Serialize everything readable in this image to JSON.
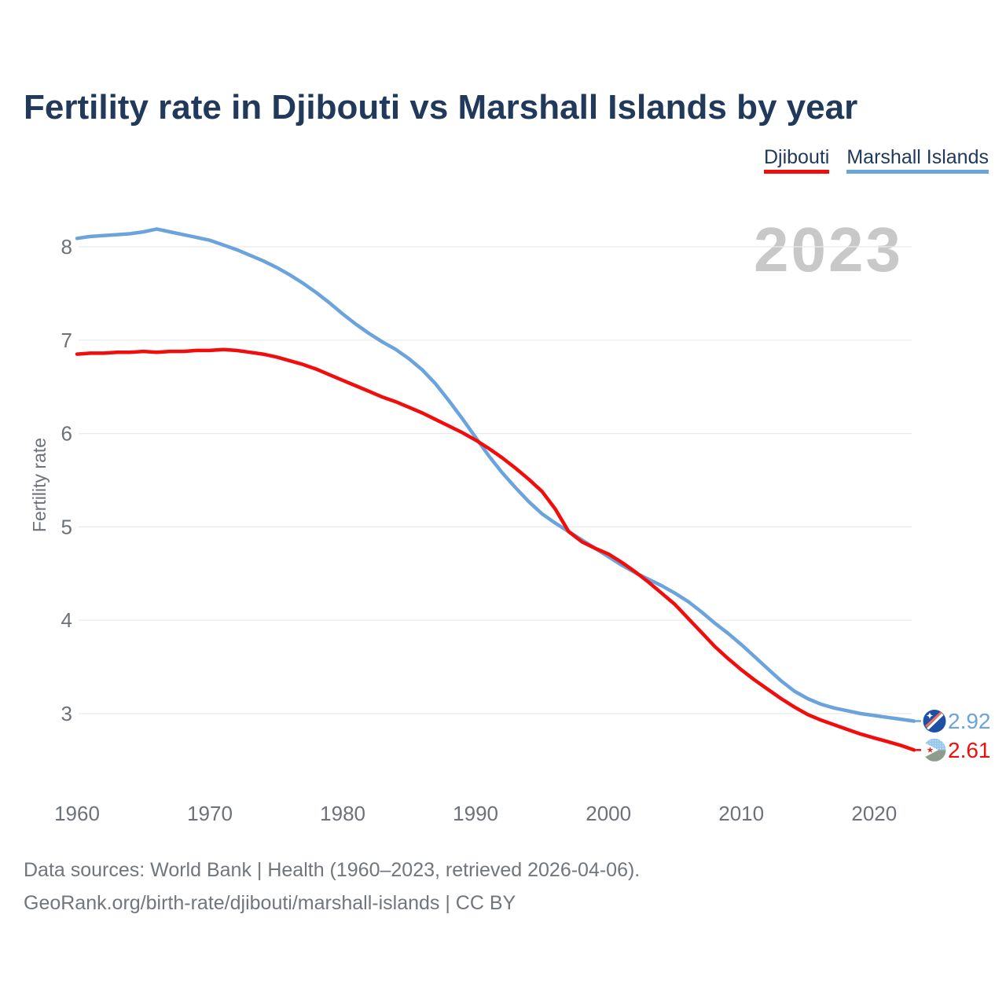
{
  "header": {
    "title": "Fertility rate in Djibouti vs Marshall Islands by year"
  },
  "legend": {
    "items": [
      {
        "label": "Djibouti",
        "color": "#f20d0d"
      },
      {
        "label": "Marshall Islands",
        "color": "#6ba3dd"
      }
    ]
  },
  "watermark": "2023",
  "chart_data": {
    "type": "line",
    "title": "Fertility rate in Djibouti vs Marshall Islands by year",
    "xlabel": "",
    "ylabel": "Fertility rate",
    "ylim": [
      2.4,
      8.45
    ],
    "yticks": [
      3,
      4,
      5,
      6,
      7,
      8
    ],
    "xticks": [
      1960,
      1970,
      1980,
      1990,
      2000,
      2010,
      2020
    ],
    "grid": "horizontal",
    "legend_position": "top-right",
    "years": [
      1960,
      1961,
      1962,
      1963,
      1964,
      1965,
      1966,
      1967,
      1968,
      1969,
      1970,
      1971,
      1972,
      1973,
      1974,
      1975,
      1976,
      1977,
      1978,
      1979,
      1980,
      1981,
      1982,
      1983,
      1984,
      1985,
      1986,
      1987,
      1988,
      1989,
      1990,
      1991,
      1992,
      1993,
      1994,
      1995,
      1996,
      1997,
      1998,
      1999,
      2000,
      2001,
      2002,
      2003,
      2004,
      2005,
      2006,
      2007,
      2008,
      2009,
      2010,
      2011,
      2012,
      2013,
      2014,
      2015,
      2016,
      2017,
      2018,
      2019,
      2020,
      2021,
      2022,
      2023
    ],
    "series": [
      {
        "name": "Marshall Islands",
        "color": "#6ba3dd",
        "end_label": "2.92",
        "values": [
          8.09,
          8.11,
          8.12,
          8.13,
          8.14,
          8.16,
          8.19,
          8.16,
          8.13,
          8.1,
          8.07,
          8.02,
          7.97,
          7.91,
          7.85,
          7.78,
          7.7,
          7.61,
          7.51,
          7.4,
          7.28,
          7.17,
          7.07,
          6.98,
          6.9,
          6.8,
          6.68,
          6.53,
          6.35,
          6.16,
          5.96,
          5.76,
          5.58,
          5.42,
          5.27,
          5.14,
          5.04,
          4.95,
          4.86,
          4.77,
          4.68,
          4.59,
          4.51,
          4.44,
          4.37,
          4.29,
          4.2,
          4.09,
          3.97,
          3.86,
          3.74,
          3.61,
          3.48,
          3.35,
          3.24,
          3.16,
          3.1,
          3.06,
          3.03,
          3.0,
          2.98,
          2.96,
          2.94,
          2.92
        ]
      },
      {
        "name": "Djibouti",
        "color": "#f20d0d",
        "end_label": "2.61",
        "values": [
          6.85,
          6.86,
          6.86,
          6.87,
          6.87,
          6.88,
          6.87,
          6.88,
          6.88,
          6.89,
          6.89,
          6.9,
          6.89,
          6.87,
          6.85,
          6.82,
          6.78,
          6.74,
          6.69,
          6.63,
          6.57,
          6.51,
          6.45,
          6.39,
          6.34,
          6.28,
          6.22,
          6.15,
          6.08,
          6.01,
          5.93,
          5.84,
          5.74,
          5.63,
          5.51,
          5.38,
          5.19,
          4.95,
          4.84,
          4.77,
          4.71,
          4.62,
          4.52,
          4.41,
          4.29,
          4.17,
          4.02,
          3.87,
          3.72,
          3.59,
          3.47,
          3.36,
          3.26,
          3.16,
          3.07,
          2.99,
          2.93,
          2.88,
          2.83,
          2.78,
          2.74,
          2.7,
          2.66,
          2.61
        ]
      }
    ]
  },
  "footer": {
    "line1": "Data sources: World Bank | Health (1960–2023, retrieved 2026-04-06).",
    "line2": "GeoRank.org/birth-rate/djibouti/marshall-islands | CC BY"
  }
}
